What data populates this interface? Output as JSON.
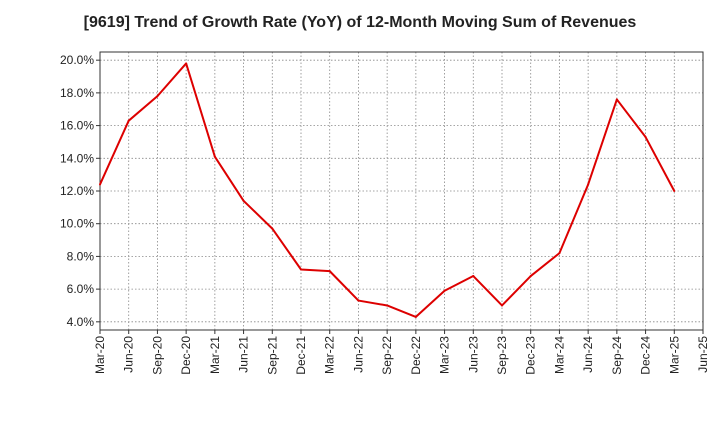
{
  "chart_data": {
    "type": "line",
    "title": "[9619]  Trend of Growth Rate (YoY) of 12-Month Moving Sum of Revenues",
    "xlabel": "",
    "ylabel": "",
    "x_tick_labels": [
      "Mar-20",
      "Jun-20",
      "Sep-20",
      "Dec-20",
      "Mar-21",
      "Jun-21",
      "Sep-21",
      "Dec-21",
      "Mar-22",
      "Jun-22",
      "Sep-22",
      "Dec-22",
      "Mar-23",
      "Jun-23",
      "Sep-23",
      "Dec-23",
      "Mar-24",
      "Jun-24",
      "Sep-24",
      "Dec-24",
      "Mar-25",
      "Jun-25"
    ],
    "y_tick_labels": [
      "4.0%",
      "6.0%",
      "8.0%",
      "10.0%",
      "12.0%",
      "14.0%",
      "16.0%",
      "18.0%",
      "20.0%"
    ],
    "y_ticks": [
      4,
      6,
      8,
      10,
      12,
      14,
      16,
      18,
      20
    ],
    "ylim": [
      3.5,
      20.5
    ],
    "grid": true,
    "series": [
      {
        "color": "#dd0000",
        "x": [
          "Mar-20",
          "Jun-20",
          "Sep-20",
          "Dec-20",
          "Mar-21",
          "Jun-21",
          "Sep-21",
          "Dec-21",
          "Mar-22",
          "Jun-22",
          "Sep-22",
          "Dec-22",
          "Mar-23",
          "Jun-23",
          "Sep-23",
          "Dec-23",
          "Mar-24",
          "Jun-24",
          "Sep-24",
          "Dec-24",
          "Mar-25"
        ],
        "values": [
          12.4,
          16.3,
          17.8,
          19.8,
          14.1,
          11.4,
          9.7,
          7.2,
          7.1,
          5.3,
          5.0,
          4.3,
          5.9,
          6.8,
          5.0,
          6.8,
          8.2,
          12.4,
          17.6,
          15.3,
          12.0
        ]
      }
    ]
  }
}
